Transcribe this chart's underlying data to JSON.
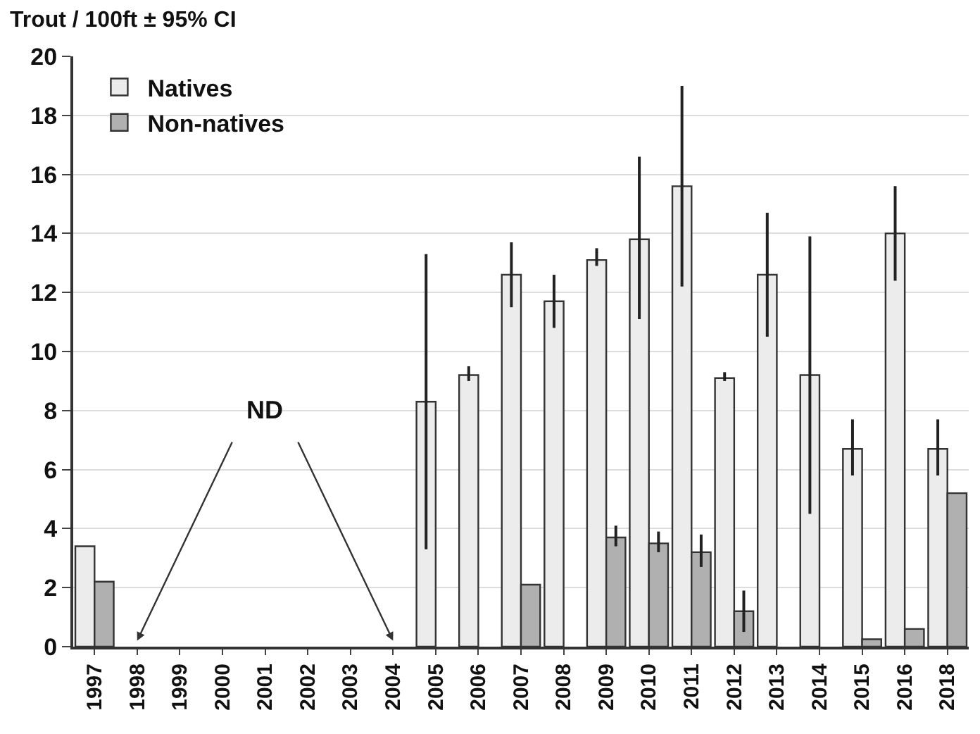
{
  "chart_data": {
    "type": "bar",
    "title": "Trout / 100ft ± 95% CI",
    "categories": [
      "1997",
      "1998",
      "1999",
      "2000",
      "2001",
      "2002",
      "2003",
      "2004",
      "2005",
      "2006",
      "2007",
      "2008",
      "2009",
      "2010",
      "2011",
      "2012",
      "2013",
      "2014",
      "2015",
      "2016",
      "2018"
    ],
    "series": [
      {
        "name": "Natives",
        "color": "#ececec",
        "values": [
          3.4,
          null,
          null,
          null,
          null,
          null,
          null,
          null,
          8.3,
          9.2,
          12.6,
          11.7,
          13.1,
          13.8,
          15.6,
          9.1,
          12.6,
          9.2,
          6.7,
          14.0,
          6.7
        ],
        "errors": [
          null,
          null,
          null,
          null,
          null,
          null,
          null,
          null,
          [
            3.3,
            13.3
          ],
          [
            9.0,
            9.5
          ],
          [
            11.5,
            13.7
          ],
          [
            10.8,
            12.6
          ],
          [
            12.9,
            13.5
          ],
          [
            11.1,
            16.6
          ],
          [
            12.2,
            19.0
          ],
          [
            9.0,
            9.3
          ],
          [
            10.5,
            14.7
          ],
          [
            4.5,
            13.9
          ],
          [
            5.8,
            7.7
          ],
          [
            12.4,
            15.6
          ],
          [
            5.8,
            7.7
          ]
        ]
      },
      {
        "name": "Non-natives",
        "color": "#b0b0b0",
        "values": [
          2.2,
          null,
          null,
          null,
          null,
          null,
          null,
          null,
          0,
          0,
          2.1,
          0,
          3.7,
          3.5,
          3.2,
          1.2,
          0,
          0,
          0.25,
          0.6,
          5.2
        ],
        "errors": [
          null,
          null,
          null,
          null,
          null,
          null,
          null,
          null,
          null,
          null,
          null,
          null,
          [
            3.4,
            4.1
          ],
          [
            3.2,
            3.9
          ],
          [
            2.7,
            3.8
          ],
          [
            0.5,
            1.9
          ],
          null,
          null,
          null,
          null,
          null
        ]
      }
    ],
    "ylim": [
      0,
      20
    ],
    "yticks": [
      0,
      2,
      4,
      6,
      8,
      10,
      12,
      14,
      16,
      18,
      20
    ],
    "grid": "y",
    "legend": "top left",
    "annotations": [
      "ND"
    ]
  }
}
